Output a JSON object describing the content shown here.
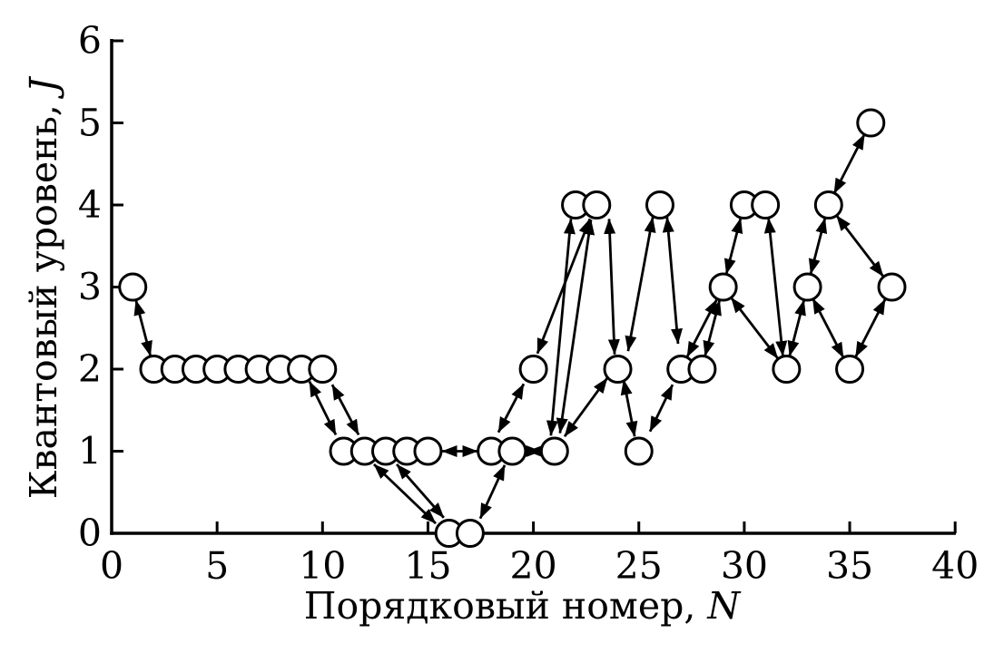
{
  "figure": {
    "background": "#ffffff",
    "foreground": "#000000",
    "xlabel_text": "Порядковый номер, ",
    "xlabel_var": "N",
    "ylabel_text": "Квантовый уровень, ",
    "ylabel_var": "J"
  },
  "chart_data": {
    "type": "scatter",
    "title": "",
    "xlabel": "Порядковый номер, N",
    "ylabel": "Квантовый уровень, J",
    "xlim": [
      0,
      40
    ],
    "ylim": [
      0,
      6
    ],
    "x_ticks": [
      0,
      5,
      10,
      15,
      20,
      25,
      30,
      35,
      40
    ],
    "y_ticks": [
      0,
      1,
      2,
      3,
      4,
      5,
      6
    ],
    "grid": false,
    "legend": null,
    "marker": "open-circle",
    "connector": "double-headed-arrow",
    "points": [
      [
        1,
        3
      ],
      [
        2,
        2
      ],
      [
        3,
        2
      ],
      [
        4,
        2
      ],
      [
        5,
        2
      ],
      [
        6,
        2
      ],
      [
        7,
        2
      ],
      [
        8,
        2
      ],
      [
        9,
        2
      ],
      [
        10,
        2
      ],
      [
        11,
        1
      ],
      [
        12,
        1
      ],
      [
        13,
        1
      ],
      [
        14,
        1
      ],
      [
        15,
        1
      ],
      [
        16,
        0
      ],
      [
        17,
        0
      ],
      [
        18,
        1
      ],
      [
        19,
        1
      ],
      [
        20,
        2
      ],
      [
        21,
        1
      ],
      [
        22,
        4
      ],
      [
        23,
        4
      ],
      [
        24,
        2
      ],
      [
        25,
        1
      ],
      [
        26,
        4
      ],
      [
        27,
        2
      ],
      [
        28,
        2
      ],
      [
        29,
        3
      ],
      [
        30,
        4
      ],
      [
        31,
        4
      ],
      [
        32,
        2
      ],
      [
        33,
        3
      ],
      [
        34,
        4
      ],
      [
        35,
        2
      ],
      [
        36,
        5
      ],
      [
        37,
        3
      ]
    ],
    "arrows": [
      [
        1.15,
        2.84,
        1.84,
        2.16
      ],
      [
        9.38,
        1.85,
        10.63,
        1.2
      ],
      [
        10.46,
        1.81,
        11.71,
        1.2
      ],
      [
        12.44,
        0.84,
        15.37,
        0.12
      ],
      [
        13.52,
        0.84,
        15.75,
        0.19
      ],
      [
        15.67,
        1.0,
        17.35,
        1.0
      ],
      [
        17.48,
        0.18,
        18.64,
        0.83
      ],
      [
        18.34,
        1.23,
        19.54,
        1.82
      ],
      [
        19.72,
        1.0,
        20.36,
        1.0
      ],
      [
        20.19,
        2.19,
        22.68,
        3.83
      ],
      [
        20.83,
        1.19,
        21.78,
        3.83
      ],
      [
        21.26,
        1.22,
        22.73,
        3.82
      ],
      [
        21.48,
        1.18,
        23.5,
        1.89
      ],
      [
        23.59,
        3.83,
        23.85,
        2.18
      ],
      [
        24.28,
        1.87,
        24.8,
        1.18
      ],
      [
        24.49,
        2.22,
        25.66,
        3.85
      ],
      [
        25.53,
        1.24,
        26.6,
        1.81
      ],
      [
        26.34,
        3.85,
        26.86,
        2.31
      ],
      [
        27.29,
        2.15,
        28.7,
        2.85
      ],
      [
        28.14,
        2.16,
        28.83,
        2.84
      ],
      [
        29.15,
        3.16,
        29.83,
        3.84
      ],
      [
        29.38,
        2.87,
        31.59,
        2.13
      ],
      [
        31.15,
        3.84,
        31.83,
        2.16
      ],
      [
        32.15,
        2.16,
        32.83,
        2.84
      ],
      [
        33.15,
        3.16,
        33.83,
        3.84
      ],
      [
        33.25,
        2.86,
        34.7,
        2.14
      ],
      [
        34.26,
        4.14,
        35.7,
        4.86
      ],
      [
        34.38,
        3.87,
        36.59,
        3.13
      ],
      [
        35.28,
        2.15,
        36.68,
        2.85
      ]
    ]
  }
}
